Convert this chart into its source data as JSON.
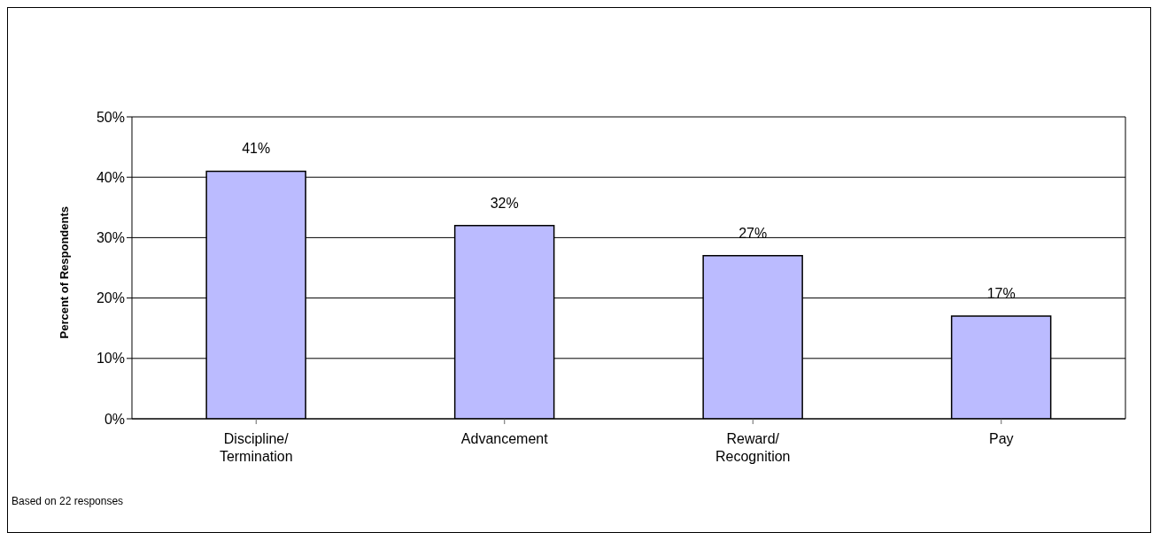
{
  "chart_data": {
    "type": "bar",
    "ylabel": "Percent of Respondents",
    "categories": [
      "Discipline/\nTermination",
      "Advancement",
      "Reward/\nRecognition",
      "Pay"
    ],
    "values": [
      41,
      32,
      27,
      17
    ],
    "value_labels": [
      "41%",
      "32%",
      "27%",
      "17%"
    ],
    "color": "#bbbbff",
    "ylim": [
      0,
      50
    ],
    "yticks": [
      {
        "value": 0,
        "label": "0%"
      },
      {
        "value": 10,
        "label": "10%"
      },
      {
        "value": 20,
        "label": "20%"
      },
      {
        "value": 30,
        "label": "30%"
      },
      {
        "value": 40,
        "label": "40%"
      },
      {
        "value": 50,
        "label": "50%"
      }
    ],
    "grid": "y",
    "legend": false,
    "annotations": [
      "Based on 22 responses"
    ]
  }
}
